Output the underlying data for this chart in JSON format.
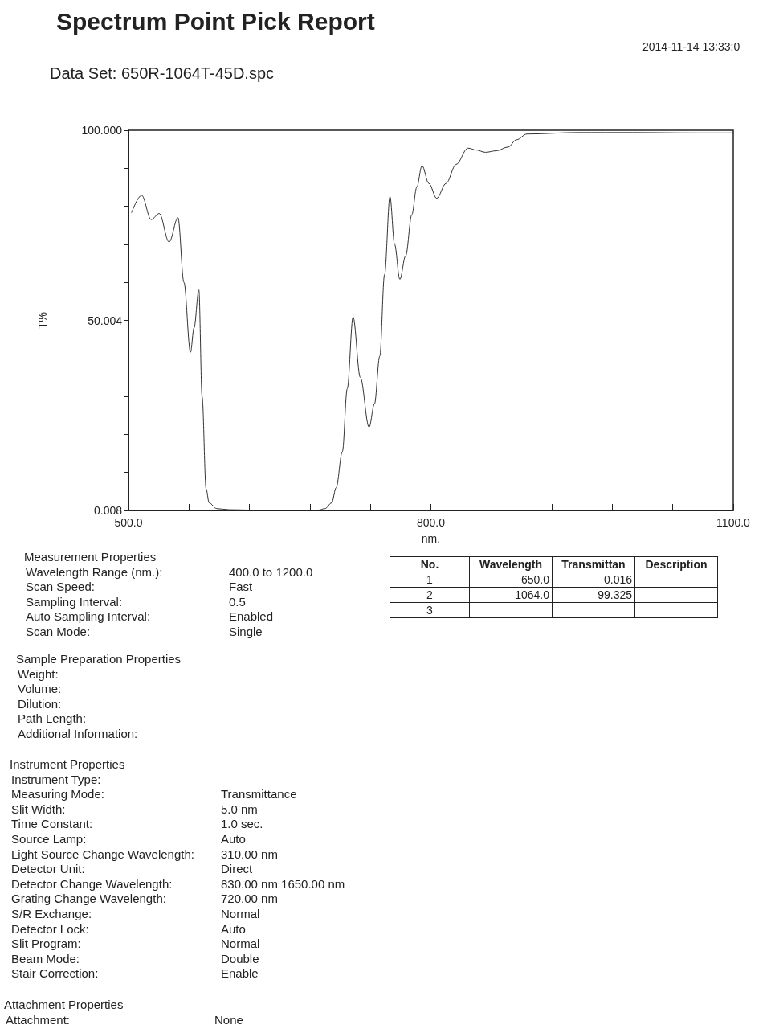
{
  "chart_data": {
    "type": "line",
    "title": "Spectrum Point Pick Report",
    "subtitle": "Data Set: 650R-1064T-45D.spc",
    "xlabel": "nm.",
    "ylabel": "T%",
    "x": [
      503,
      513,
      522.5,
      530.5,
      540.3,
      549.1,
      555,
      561.5,
      565,
      569.8,
      573,
      577,
      580,
      587.5,
      600,
      624.7,
      650,
      688.3,
      695,
      701.6,
      706,
      712.2,
      717,
      722.8,
      730,
      738.7,
      744,
      749.3,
      754,
      759.4,
      764,
      769.2,
      775,
      781.1,
      786,
      791.2,
      798,
      805.8,
      815,
      825,
      836.8,
      845,
      854.1,
      865,
      876.6,
      885,
      895.2,
      945.6,
      1000,
      1064,
      1100
    ],
    "series": [
      {
        "color": "#333333",
        "values": [
          78.3,
          82.9,
          76.5,
          78.1,
          70.6,
          77.0,
          60,
          41.6,
          48,
          58.0,
          30,
          5.7,
          2,
          0.5,
          0.2,
          0.1,
          0.1,
          0.1,
          0.5,
          2.0,
          6,
          15.5,
          32,
          50.9,
          35,
          21.9,
          28,
          40.6,
          62,
          82.5,
          70,
          60.8,
          67,
          77.8,
          85,
          90.7,
          86,
          82.1,
          86,
          91,
          95.3,
          94.8,
          94.2,
          94.6,
          95.6,
          97.5,
          99.0,
          99.4,
          99.4,
          99.3,
          99.3
        ]
      }
    ],
    "xlim": [
      500,
      1100
    ],
    "xticks": [
      {
        "value": 500,
        "label": "500.0"
      },
      {
        "value": 560,
        "label": null
      },
      {
        "value": 620,
        "label": null
      },
      {
        "value": 680,
        "label": null
      },
      {
        "value": 740,
        "label": null
      },
      {
        "value": 800,
        "label": "800.0"
      },
      {
        "value": 860,
        "label": null
      },
      {
        "value": 920,
        "label": null
      },
      {
        "value": 980,
        "label": null
      },
      {
        "value": 1040,
        "label": null
      },
      {
        "value": 1100,
        "label": "1100.0"
      }
    ],
    "ylim": [
      0.008,
      100
    ],
    "yticks": [
      {
        "value": 0.008,
        "label": "0.008"
      },
      {
        "value": 10,
        "label": null
      },
      {
        "value": 20,
        "label": null
      },
      {
        "value": 30,
        "label": null
      },
      {
        "value": 40,
        "label": null
      },
      {
        "value": 50.004,
        "label": "50.004"
      },
      {
        "value": 60,
        "label": null
      },
      {
        "value": 70,
        "label": null
      },
      {
        "value": 80,
        "label": null
      },
      {
        "value": 90,
        "label": null
      },
      {
        "value": 100,
        "label": "100.000"
      }
    ],
    "grid": false,
    "marker": "none",
    "line_style": "solid",
    "annotations": [
      "2014-11-14  13:33:0",
      "No.",
      "Wavelength",
      "Transmittan",
      "Description",
      "1",
      "650.0",
      "0.016",
      "2",
      "1064.0",
      "99.325",
      "3",
      "Measurement Properties",
      "Wavelength Range (nm.):",
      "400.0 to 1200.0",
      "Scan Speed:",
      "Fast",
      "Sampling Interval:",
      "0.5",
      "Auto Sampling Interval:",
      "Enabled",
      "Scan Mode:",
      "Single",
      "Sample Preparation Properties",
      "Weight:",
      "Volume:",
      "Dilution:",
      "Path Length:",
      "Additional Information:",
      "Instrument Properties",
      "Instrument Type:",
      "Measuring Mode:",
      "Transmittance",
      "Slit Width:",
      "5.0 nm",
      "Time Constant:",
      "1.0 sec.",
      "Source Lamp:",
      "Auto",
      "Light Source Change Wavelength:",
      "310.00 nm",
      "Detector Unit:",
      "Direct",
      "Detector Change Wavelength:",
      "830.00 nm  1650.00 nm",
      "Grating Change Wavelength:",
      "720.00 nm",
      "S/R Exchange:",
      "Normal",
      "Detector Lock:",
      "Auto",
      "Slit Program:",
      "Normal",
      "Beam Mode:",
      "Double",
      "Stair Correction:",
      "Enable",
      "Attachment Properties",
      "Attachment:",
      "None"
    ]
  }
}
